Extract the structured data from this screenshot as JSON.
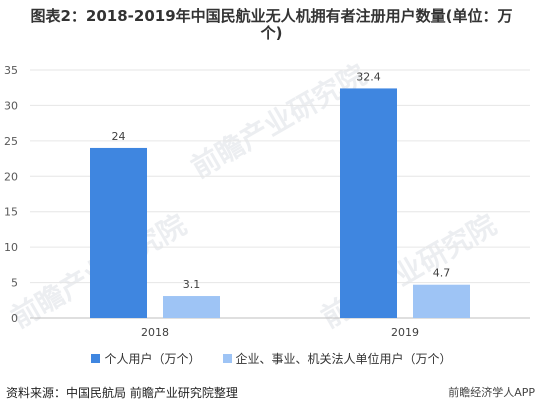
{
  "title_line1": "图表2：2018-2019年中国民航业无人机拥有者注册用户数量(单位：万",
  "title_line2": "个)",
  "source": "资料来源：中国民航局 前瞻产业研究院整理",
  "brand": "前瞻经济学人APP",
  "watermark": "前瞻产业研究院",
  "chart_data": {
    "type": "bar",
    "categories": [
      "2018",
      "2019"
    ],
    "series": [
      {
        "name": "个人用户（万个）",
        "values": [
          24,
          32.4
        ],
        "color": "#3f86e0"
      },
      {
        "name": "企业、事业、机关法人单位用户（万个）",
        "values": [
          3.1,
          4.7
        ],
        "color": "#9ec4f5"
      }
    ],
    "ylim": [
      0,
      35
    ],
    "yticks": [
      0,
      5,
      10,
      15,
      20,
      25,
      30,
      35
    ],
    "grid": true,
    "legend_position": "bottom"
  }
}
